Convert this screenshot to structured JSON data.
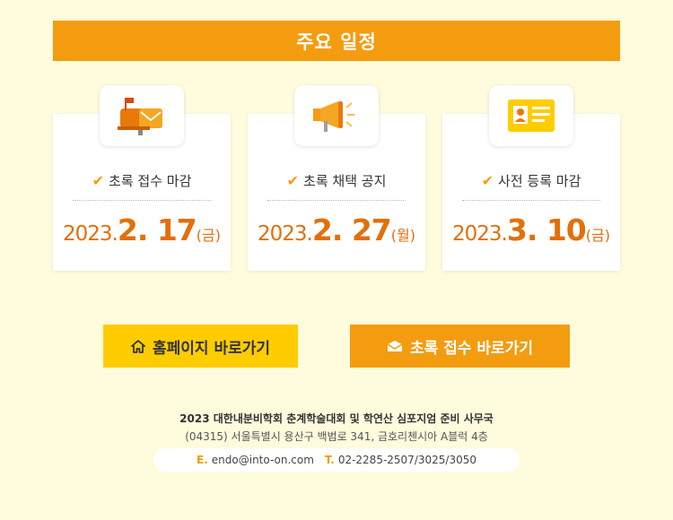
{
  "banner": {
    "title": "주요 일정"
  },
  "schedule": [
    {
      "label": "초록 접수 마감",
      "year": "2023.",
      "md": "2. 17",
      "dow": "(금)",
      "icon": "mailbox-icon"
    },
    {
      "label": "초록 채택 공지",
      "year": "2023.",
      "md": "2. 27",
      "dow": "(월)",
      "icon": "megaphone-icon"
    },
    {
      "label": "사전 등록 마감",
      "year": "2023.",
      "md": "3. 10",
      "dow": "(금)",
      "icon": "id-card-icon"
    }
  ],
  "buttons": {
    "home": "홈페이지 바로가기",
    "abstract": "초록 접수 바로가기"
  },
  "footer": {
    "org": "2023 대한내분비학회 춘계학술대회 및 학연산 심포지엄 준비 사무국",
    "address": "(04315) 서울특별시 용산구 백범로 341, 금호리첸시아 A블럭 4층",
    "email_key": "E.",
    "email": "endo@into-on.com",
    "tel_key": "T.",
    "tel": "02-2285-2507/3025/3050"
  },
  "colors": {
    "accent": "#f39c0f",
    "yellow": "#ffcc00",
    "date": "#e36f0b",
    "background": "#fffbdd"
  }
}
